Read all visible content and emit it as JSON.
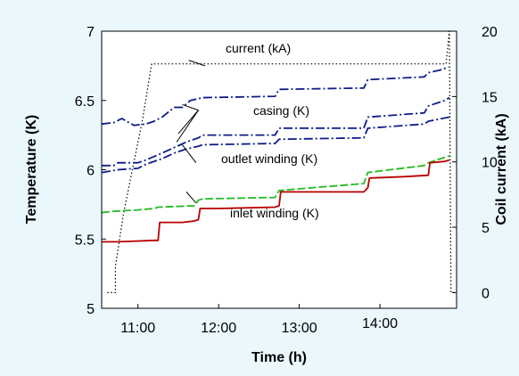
{
  "colors": {
    "background": "#eaf7fd",
    "current": "#000000",
    "casing": "#0b1c8a",
    "outlet_winding": "#22bb22",
    "inlet_winding": "#b80000"
  },
  "chart_data": {
    "type": "line",
    "xlabel": "Time (h)",
    "ylabel_left": "Temperature (K)",
    "ylabel_right": "Coil current (kA)",
    "xlim": [
      10.55,
      14.95
    ],
    "ylim_left": [
      5,
      7
    ],
    "ylim_right": [
      -1.2,
      20
    ],
    "x_ticks": [
      {
        "value": 11,
        "label": "11:00"
      },
      {
        "value": 12,
        "label": "12:00"
      },
      {
        "value": 13,
        "label": "13:00"
      },
      {
        "value": 14,
        "label": "14:00"
      }
    ],
    "y_ticks_left": [
      {
        "value": 5,
        "label": "5"
      },
      {
        "value": 5.5,
        "label": "5.5"
      },
      {
        "value": 6,
        "label": "6"
      },
      {
        "value": 6.5,
        "label": "6.5"
      },
      {
        "value": 7,
        "label": "7"
      }
    ],
    "y_ticks_right": [
      {
        "value": 0,
        "label": "0"
      },
      {
        "value": 5,
        "label": "5"
      },
      {
        "value": 10,
        "label": "10"
      },
      {
        "value": 15,
        "label": "15"
      },
      {
        "value": 20,
        "label": "20"
      }
    ],
    "annotations": [
      {
        "text": "current (kA)"
      },
      {
        "text": "casing (K)"
      },
      {
        "text": "outlet winding (K)"
      },
      {
        "text": "inlet winding (K)"
      }
    ],
    "series": [
      {
        "name": "current (kA)",
        "axis": "right",
        "style": "dotted",
        "color": "#000000",
        "points": [
          [
            10.62,
            0
          ],
          [
            10.72,
            0
          ],
          [
            10.72,
            2
          ],
          [
            10.82,
            6
          ],
          [
            10.95,
            10
          ],
          [
            11.05,
            13
          ],
          [
            11.17,
            17.5
          ],
          [
            14.82,
            17.5
          ],
          [
            14.86,
            20
          ],
          [
            14.88,
            0
          ],
          [
            14.93,
            0
          ]
        ]
      },
      {
        "name": "casing (K)",
        "axis": "left",
        "style": "dashdot",
        "color": "#0b1c8a",
        "points": [
          [
            10.55,
            6.33
          ],
          [
            10.7,
            6.34
          ],
          [
            10.8,
            6.37
          ],
          [
            10.95,
            6.32
          ],
          [
            11.1,
            6.33
          ],
          [
            11.2,
            6.35
          ],
          [
            11.3,
            6.38
          ],
          [
            11.45,
            6.45
          ],
          [
            11.55,
            6.45
          ],
          [
            11.65,
            6.5
          ],
          [
            11.8,
            6.52
          ],
          [
            12.7,
            6.53
          ],
          [
            12.75,
            6.58
          ],
          [
            13.8,
            6.59
          ],
          [
            13.85,
            6.65
          ],
          [
            14.55,
            6.67
          ],
          [
            14.6,
            6.7
          ],
          [
            14.75,
            6.72
          ],
          [
            14.85,
            6.74
          ]
        ]
      },
      {
        "name": "casing (K)",
        "axis": "left",
        "style": "dashdot",
        "color": "#0b1c8a",
        "points": [
          [
            10.55,
            6.03
          ],
          [
            10.7,
            6.03
          ],
          [
            10.75,
            6.05
          ],
          [
            11.0,
            6.05
          ],
          [
            11.1,
            6.07
          ],
          [
            11.3,
            6.12
          ],
          [
            11.45,
            6.16
          ],
          [
            11.6,
            6.2
          ],
          [
            11.75,
            6.23
          ],
          [
            11.8,
            6.25
          ],
          [
            12.7,
            6.25
          ],
          [
            12.75,
            6.3
          ],
          [
            13.8,
            6.3
          ],
          [
            13.85,
            6.38
          ],
          [
            14.55,
            6.41
          ],
          [
            14.6,
            6.46
          ],
          [
            14.8,
            6.5
          ],
          [
            14.86,
            6.52
          ]
        ]
      },
      {
        "name": "casing (K)",
        "axis": "left",
        "style": "dashdot",
        "color": "#0b1c8a",
        "points": [
          [
            10.55,
            5.98
          ],
          [
            10.65,
            5.99
          ],
          [
            10.75,
            6.0
          ],
          [
            11.0,
            6.01
          ],
          [
            11.1,
            6.04
          ],
          [
            11.3,
            6.08
          ],
          [
            11.45,
            6.12
          ],
          [
            11.6,
            6.15
          ],
          [
            11.75,
            6.17
          ],
          [
            11.8,
            6.18
          ],
          [
            12.7,
            6.19
          ],
          [
            12.75,
            6.22
          ],
          [
            13.8,
            6.23
          ],
          [
            13.85,
            6.3
          ],
          [
            14.55,
            6.33
          ],
          [
            14.6,
            6.35
          ],
          [
            14.86,
            6.38
          ]
        ]
      },
      {
        "name": "outlet winding (K)",
        "axis": "left",
        "style": "dashed",
        "color": "#22bb22",
        "points": [
          [
            10.55,
            5.69
          ],
          [
            10.7,
            5.7
          ],
          [
            11.0,
            5.71
          ],
          [
            11.2,
            5.72
          ],
          [
            11.25,
            5.73
          ],
          [
            11.7,
            5.74
          ],
          [
            11.75,
            5.78
          ],
          [
            11.8,
            5.79
          ],
          [
            12.7,
            5.8
          ],
          [
            12.75,
            5.85
          ],
          [
            13.8,
            5.9
          ],
          [
            13.85,
            5.98
          ],
          [
            14.55,
            6.03
          ],
          [
            14.6,
            6.05
          ],
          [
            14.75,
            6.08
          ],
          [
            14.86,
            6.1
          ]
        ]
      },
      {
        "name": "inlet winding (K)",
        "axis": "left",
        "style": "solid",
        "color": "#b80000",
        "points": [
          [
            10.55,
            5.48
          ],
          [
            10.75,
            5.48
          ],
          [
            11.2,
            5.49
          ],
          [
            11.25,
            5.49
          ],
          [
            11.27,
            5.62
          ],
          [
            11.55,
            5.62
          ],
          [
            11.7,
            5.63
          ],
          [
            11.75,
            5.64
          ],
          [
            11.77,
            5.72
          ],
          [
            12.0,
            5.72
          ],
          [
            12.7,
            5.73
          ],
          [
            12.75,
            5.74
          ],
          [
            12.77,
            5.84
          ],
          [
            13.8,
            5.84
          ],
          [
            13.85,
            5.87
          ],
          [
            13.87,
            5.94
          ],
          [
            14.3,
            5.95
          ],
          [
            14.6,
            5.96
          ],
          [
            14.62,
            6.05
          ],
          [
            14.8,
            6.06
          ],
          [
            14.86,
            6.07
          ]
        ]
      }
    ]
  }
}
